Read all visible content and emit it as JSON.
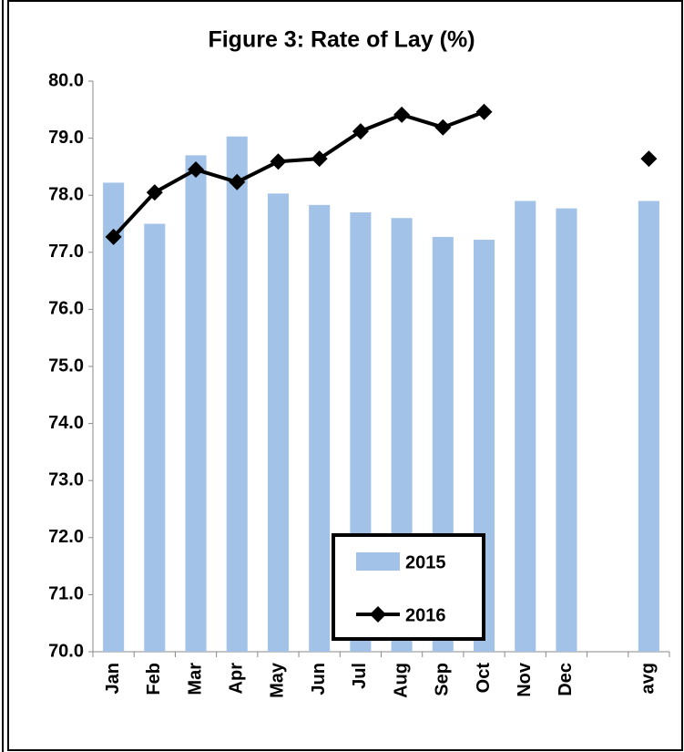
{
  "chart_data": {
    "type": "bar-line",
    "title": "Figure 3: Rate of Lay (%)",
    "categories": [
      "Jan",
      "Feb",
      "Mar",
      "Apr",
      "May",
      "Jun",
      "Jul",
      "Aug",
      "Sep",
      "Oct",
      "Nov",
      "Dec",
      null,
      "avg"
    ],
    "series": [
      {
        "name": "2015",
        "type": "bar",
        "color": "#a3c2e8",
        "values": [
          78.22,
          77.5,
          78.7,
          79.03,
          78.03,
          77.83,
          77.7,
          77.6,
          77.27,
          77.22,
          77.9,
          77.77,
          null,
          77.9
        ]
      },
      {
        "name": "2016",
        "type": "line",
        "color": "#000000",
        "values": [
          77.27,
          78.05,
          78.45,
          78.23,
          78.59,
          78.64,
          79.12,
          79.41,
          79.19,
          79.46,
          null,
          null,
          null,
          78.64
        ]
      }
    ],
    "ylim": [
      70,
      80
    ],
    "yticks": [
      {
        "value": 70,
        "label": "70.0"
      },
      {
        "value": 71,
        "label": "71.0"
      },
      {
        "value": 72,
        "label": "72.0"
      },
      {
        "value": 73,
        "label": "73.0"
      },
      {
        "value": 74,
        "label": "74.0"
      },
      {
        "value": 75,
        "label": "75.0"
      },
      {
        "value": 76,
        "label": "76.0"
      },
      {
        "value": 77,
        "label": "77.0"
      },
      {
        "value": 78,
        "label": "78.0"
      },
      {
        "value": 79,
        "label": "79.0"
      },
      {
        "value": 80,
        "label": "80.0"
      }
    ],
    "grid": false,
    "legend": "lower center"
  }
}
